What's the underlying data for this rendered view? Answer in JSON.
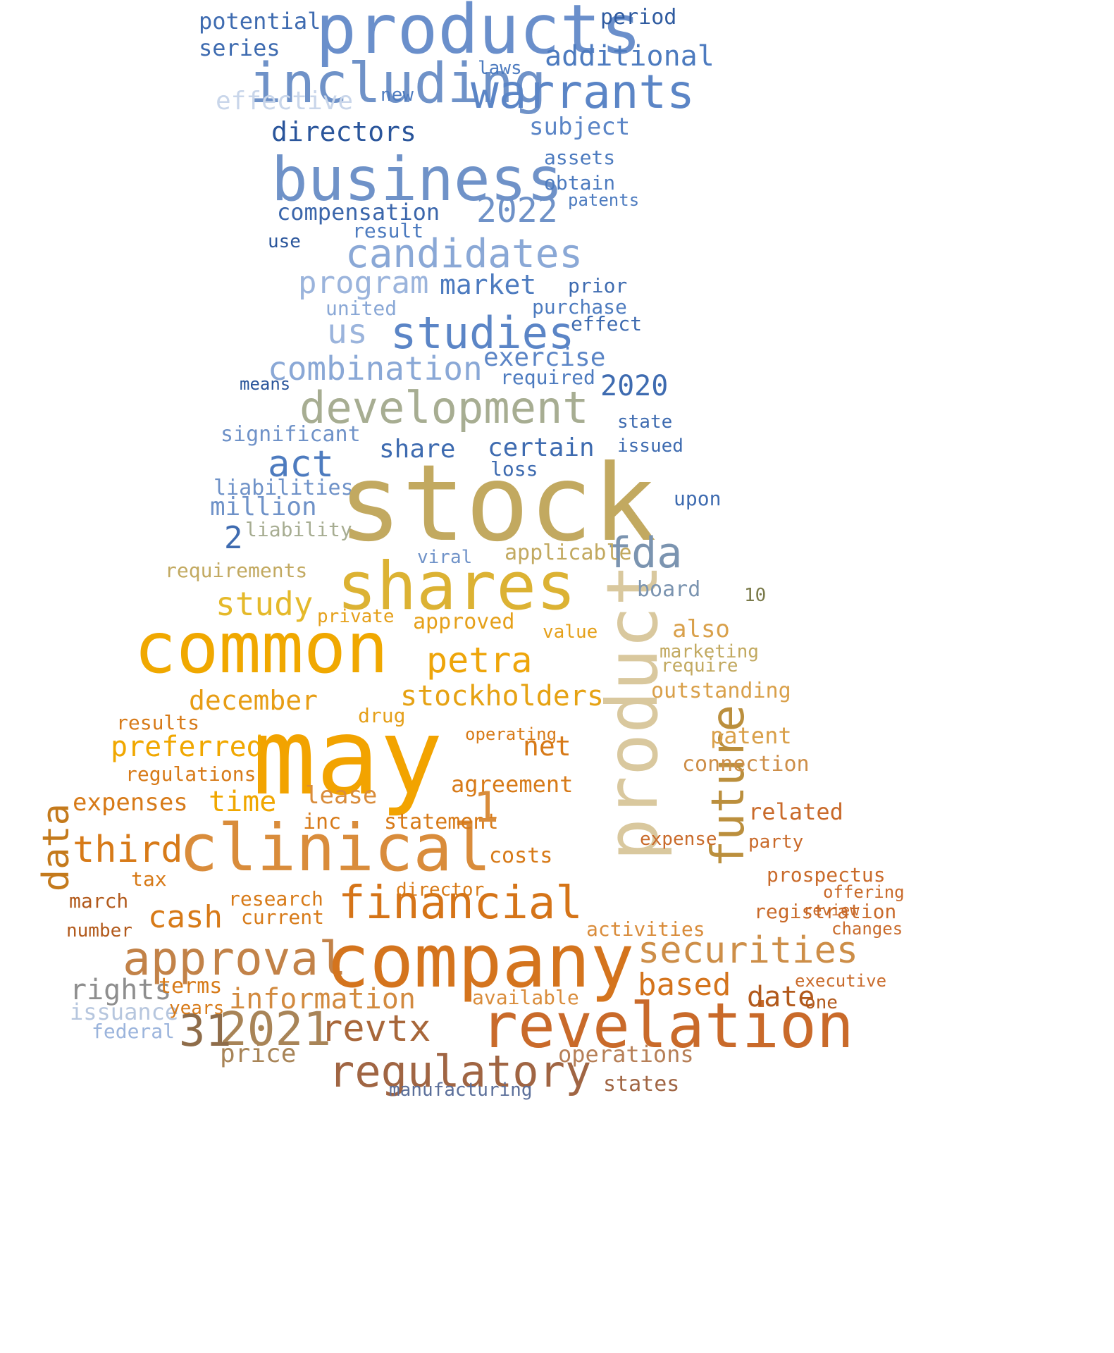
{
  "words": [
    {
      "t": "products",
      "c": "#6a8fcb"
    },
    {
      "t": "including",
      "c": "#6f92c8"
    },
    {
      "t": "warrants",
      "c": "#5b85c6"
    },
    {
      "t": "additional",
      "c": "#4d7bbf"
    },
    {
      "t": "potential",
      "c": "#3e6bb0"
    },
    {
      "t": "series",
      "c": "#3e6bb0"
    },
    {
      "t": "period",
      "c": "#2f5ba0"
    },
    {
      "t": "effective",
      "c": "#c9d6ea"
    },
    {
      "t": "directors",
      "c": "#2a559b"
    },
    {
      "t": "subject",
      "c": "#5b85c6"
    },
    {
      "t": "business",
      "c": "#6f92c8"
    },
    {
      "t": "2022",
      "c": "#6f92c8"
    },
    {
      "t": "compensation",
      "c": "#3b66ab"
    },
    {
      "t": "candidates",
      "c": "#8aa8d6"
    },
    {
      "t": "program",
      "c": "#9bb4dc"
    },
    {
      "t": "market",
      "c": "#4d7bbf"
    },
    {
      "t": "studies",
      "c": "#5b85c6"
    },
    {
      "t": "us",
      "c": "#9bb4dc"
    },
    {
      "t": "combination",
      "c": "#8aa8d6"
    },
    {
      "t": "exercise",
      "c": "#5b85c6"
    },
    {
      "t": "development",
      "c": "#a7ad92"
    },
    {
      "t": "2020",
      "c": "#3e6bb0"
    },
    {
      "t": "act",
      "c": "#4d7bbf"
    },
    {
      "t": "significant",
      "c": "#6f92c8"
    },
    {
      "t": "certain",
      "c": "#3e6bb0"
    },
    {
      "t": "share",
      "c": "#3e6bb0"
    },
    {
      "t": "liabilities",
      "c": "#6f92c8"
    },
    {
      "t": "million",
      "c": "#6f92c8"
    },
    {
      "t": "stock",
      "c": "#c2a960"
    },
    {
      "t": "fda",
      "c": "#7b94b0"
    },
    {
      "t": "shares",
      "c": "#dcb233"
    },
    {
      "t": "study",
      "c": "#e5b92a"
    },
    {
      "t": "common",
      "c": "#f0a800"
    },
    {
      "t": "petra",
      "c": "#eea50a"
    },
    {
      "t": "stockholders",
      "c": "#e6a213"
    },
    {
      "t": "december",
      "c": "#e79d14"
    },
    {
      "t": "product",
      "c": "#d9c89e"
    },
    {
      "t": "future",
      "c": "#bb8f3d"
    },
    {
      "t": "may",
      "c": "#f2a300"
    },
    {
      "t": "preferred",
      "c": "#f0a700"
    },
    {
      "t": "time",
      "c": "#f0a700"
    },
    {
      "t": "clinical",
      "c": "#d98c3b"
    },
    {
      "t": "third",
      "c": "#d77a18"
    },
    {
      "t": "data",
      "c": "#c47a1c"
    },
    {
      "t": "financial",
      "c": "#d57418"
    },
    {
      "t": "securities",
      "c": "#cd8e48"
    },
    {
      "t": "approval",
      "c": "#c28248"
    },
    {
      "t": "company",
      "c": "#d4741d"
    },
    {
      "t": "revelation",
      "c": "#c96a2a"
    },
    {
      "t": "2021",
      "c": "#a88457"
    },
    {
      "t": "31",
      "c": "#8e6c49"
    },
    {
      "t": "revtx",
      "c": "#a8673a"
    },
    {
      "t": "regulatory",
      "c": "#a06543"
    },
    {
      "t": "information",
      "c": "#d28a3f"
    },
    {
      "t": "rights",
      "c": "#8e8e8e"
    },
    {
      "t": "issuance",
      "c": "#b6c6de"
    },
    {
      "t": "based",
      "c": "#d4741d"
    },
    {
      "t": "date",
      "c": "#b25a1c"
    },
    {
      "t": "operations",
      "c": "#b67f57"
    },
    {
      "t": "manufacturing",
      "c": "#5b6f9a"
    },
    {
      "t": "laws",
      "c": "#4d7bbf"
    },
    {
      "t": "new",
      "c": "#4d7bbf"
    },
    {
      "t": "assets",
      "c": "#4d7bbf"
    },
    {
      "t": "obtain",
      "c": "#4d7bbf"
    },
    {
      "t": "patents",
      "c": "#4d7bbf"
    },
    {
      "t": "result",
      "c": "#4d7bbf"
    },
    {
      "t": "use",
      "c": "#2a559b"
    },
    {
      "t": "prior",
      "c": "#3e6bb0"
    },
    {
      "t": "purchase",
      "c": "#4d7bbf"
    },
    {
      "t": "effect",
      "c": "#3e6bb0"
    },
    {
      "t": "united",
      "c": "#8aa8d6"
    },
    {
      "t": "required",
      "c": "#4d7bbf"
    },
    {
      "t": "means",
      "c": "#2a559b"
    },
    {
      "t": "state",
      "c": "#3e6bb0"
    },
    {
      "t": "issued",
      "c": "#3e6bb0"
    },
    {
      "t": "loss",
      "c": "#3e6bb0"
    },
    {
      "t": "upon",
      "c": "#3e6bb0"
    },
    {
      "t": "liability",
      "c": "#a7ad92"
    },
    {
      "t": "applicable",
      "c": "#c2a960"
    },
    {
      "t": "viral",
      "c": "#6f92c8"
    },
    {
      "t": "requirements",
      "c": "#c2a960"
    },
    {
      "t": "board",
      "c": "#7b94b0"
    },
    {
      "t": "approved",
      "c": "#e5a01a"
    },
    {
      "t": "private",
      "c": "#e5a01a"
    },
    {
      "t": "value",
      "c": "#e5a01a"
    },
    {
      "t": "also",
      "c": "#d9a04a"
    },
    {
      "t": "outstanding",
      "c": "#d9a04a"
    },
    {
      "t": "patent",
      "c": "#d9a04a"
    },
    {
      "t": "marketing",
      "c": "#c2a960"
    },
    {
      "t": "require",
      "c": "#c2a960"
    },
    {
      "t": "drug",
      "c": "#e5a01a"
    },
    {
      "t": "net",
      "c": "#d77a18"
    },
    {
      "t": "operating",
      "c": "#d77a18"
    },
    {
      "t": "results",
      "c": "#d77a18"
    },
    {
      "t": "regulations",
      "c": "#d77a18"
    },
    {
      "t": "expenses",
      "c": "#d77a18"
    },
    {
      "t": "lease",
      "c": "#d98c3b"
    },
    {
      "t": "agreement",
      "c": "#d77a18"
    },
    {
      "t": "statement",
      "c": "#d77a18"
    },
    {
      "t": "inc",
      "c": "#d77a18"
    },
    {
      "t": "connection",
      "c": "#cd8e48"
    },
    {
      "t": "related",
      "c": "#c96a2a"
    },
    {
      "t": "party",
      "c": "#c96a2a"
    },
    {
      "t": "expense",
      "c": "#c96a2a"
    },
    {
      "t": "prospectus",
      "c": "#c96a2a"
    },
    {
      "t": "registration",
      "c": "#c96a2a"
    },
    {
      "t": "cash",
      "c": "#d77a18"
    },
    {
      "t": "research",
      "c": "#d77a18"
    },
    {
      "t": "current",
      "c": "#d77a18"
    },
    {
      "t": "director",
      "c": "#d77a18"
    },
    {
      "t": "costs",
      "c": "#d77a18"
    },
    {
      "t": "march",
      "c": "#b25a1c"
    },
    {
      "t": "tax",
      "c": "#d77a18"
    },
    {
      "t": "activities",
      "c": "#d98c3b"
    },
    {
      "t": "available",
      "c": "#d98c3b"
    },
    {
      "t": "terms",
      "c": "#d77a18"
    },
    {
      "t": "years",
      "c": "#d77a18"
    },
    {
      "t": "executive",
      "c": "#c96a2a"
    },
    {
      "t": "one",
      "c": "#b25a1c"
    },
    {
      "t": "states",
      "c": "#a06543"
    },
    {
      "t": "price",
      "c": "#a88457"
    },
    {
      "t": "federal",
      "c": "#9bb4dc"
    },
    {
      "t": "number",
      "c": "#b25a1c"
    },
    {
      "t": "changes",
      "c": "#c96a2a"
    },
    {
      "t": "offering",
      "c": "#c96a2a"
    },
    {
      "t": "review",
      "c": "#c96a2a"
    },
    {
      "t": "1",
      "c": "#d98c3b"
    },
    {
      "t": "2",
      "c": "#3e6bb0"
    },
    {
      "t": "10",
      "c": "#7a7a4a"
    }
  ]
}
